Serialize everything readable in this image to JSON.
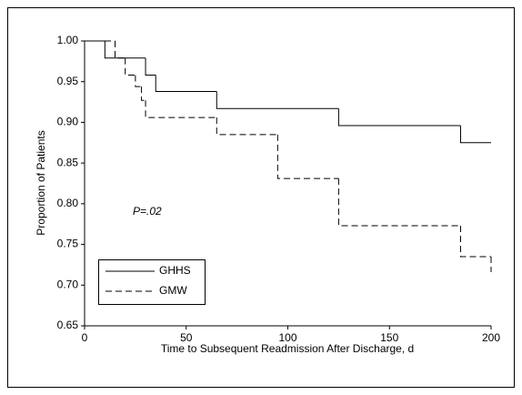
{
  "chart_data": {
    "type": "step",
    "x_label": "Time to Subsequent Readmission After Discharge, d",
    "y_label": "Proportion of Patients",
    "annotation": "P=.02",
    "series": [
      {
        "name": "GHHS",
        "color": "#000000",
        "dash": "solid",
        "x": [
          0,
          10,
          30,
          35,
          65,
          125,
          185,
          200
        ],
        "values": [
          1.0,
          0.979,
          0.958,
          0.938,
          0.917,
          0.896,
          0.875,
          0.875
        ]
      },
      {
        "name": "GMW",
        "color": "#000000",
        "dash": "dashed",
        "x": [
          0,
          15,
          20,
          25,
          28,
          30,
          65,
          95,
          125,
          185,
          200
        ],
        "values": [
          1.0,
          0.979,
          0.958,
          0.944,
          0.927,
          0.906,
          0.885,
          0.831,
          0.773,
          0.735,
          0.716
        ]
      }
    ],
    "xlim": [
      0,
      200
    ],
    "xticks": [
      0,
      50,
      100,
      150,
      200
    ],
    "ylim": [
      0.65,
      1.0
    ],
    "yticks": [
      {
        "value": 0.65,
        "label": "0.65"
      },
      {
        "value": 0.7,
        "label": "0.70"
      },
      {
        "value": 0.75,
        "label": "0.75"
      },
      {
        "value": 0.8,
        "label": "0.80"
      },
      {
        "value": 0.85,
        "label": "0.85"
      },
      {
        "value": 0.9,
        "label": "0.90"
      },
      {
        "value": 0.95,
        "label": "0.95"
      },
      {
        "value": 1.0,
        "label": "1.00"
      }
    ],
    "legend": "lower-left"
  }
}
